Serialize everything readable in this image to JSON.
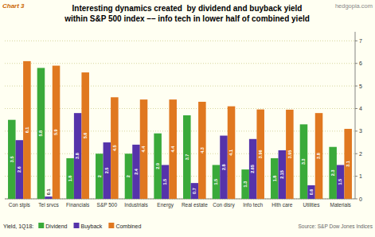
{
  "chart_data": {
    "type": "bar",
    "title": "Interesting dynamics created  by dividend and buyback yield",
    "subtitle": "within S&P 500 index –– info tech in lower half of combined yield",
    "annotations": [
      "Chart 3",
      "hedgopia.com",
      "Yield, 1Q18:",
      "Source: S&P Dow Jones Indices"
    ],
    "categories": [
      "Con stpls",
      "Tel srvcs",
      "Financials",
      "S&P 500",
      "Industrials",
      "Energy",
      "Real estate",
      "Con disry",
      "Info tech",
      "Hlth care",
      "Utilities",
      "Materials"
    ],
    "series": [
      {
        "name": "Dividend",
        "color": "#3aaa3a",
        "values": [
          3.5,
          5.8,
          1.8,
          2.0,
          2.0,
          2.9,
          3.7,
          1.5,
          1.3,
          1.8,
          3.3,
          2.3
        ]
      },
      {
        "name": "Buyback",
        "color": "#5533aa",
        "values": [
          2.6,
          0.1,
          3.8,
          2.5,
          2.4,
          1.5,
          0.7,
          2.8,
          2.65,
          2.15,
          0.6,
          1.5
        ]
      },
      {
        "name": "Combined",
        "color": "#e07820",
        "values": [
          6.1,
          5.9,
          5.6,
          4.5,
          4.4,
          4.4,
          4.3,
          4.1,
          3.96,
          3.95,
          3.8,
          3.1
        ]
      }
    ],
    "ylim": [
      0,
      7.4
    ],
    "yticks": [
      0,
      1,
      2,
      3,
      4,
      5,
      6,
      7
    ],
    "grid": true,
    "legend": "lower left",
    "data_labels": true
  }
}
